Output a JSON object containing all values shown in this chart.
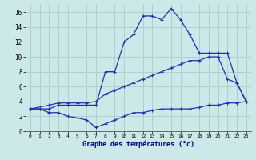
{
  "xlabel": "Graphe des températures (°c)",
  "bg_color": "#cce8e8",
  "grid_color": "#aacccc",
  "line_color": "#2233aa",
  "xlim": [
    -0.5,
    23.5
  ],
  "ylim": [
    0,
    17
  ],
  "xticks": [
    0,
    1,
    2,
    3,
    4,
    5,
    6,
    7,
    8,
    9,
    10,
    11,
    12,
    13,
    14,
    15,
    16,
    17,
    18,
    19,
    20,
    21,
    22,
    23
  ],
  "yticks": [
    0,
    2,
    4,
    6,
    8,
    10,
    12,
    14,
    16
  ],
  "line1_x": [
    0,
    1,
    2,
    3,
    4,
    5,
    6,
    7,
    8,
    9,
    10,
    11,
    12,
    13,
    14,
    15,
    16,
    17,
    18,
    19,
    20,
    21,
    22,
    23
  ],
  "line1_y": [
    3.0,
    3.0,
    3.0,
    3.5,
    3.5,
    3.5,
    3.5,
    3.5,
    8.0,
    8.0,
    12.0,
    13.0,
    15.5,
    15.5,
    15.0,
    16.5,
    15.0,
    13.0,
    10.5,
    10.5,
    10.5,
    10.5,
    6.5,
    4.0
  ],
  "line2_x": [
    0,
    2,
    3,
    4,
    5,
    6,
    7,
    8,
    9,
    10,
    11,
    12,
    13,
    14,
    15,
    16,
    17,
    18,
    19,
    20,
    21,
    22,
    23
  ],
  "line2_y": [
    3.0,
    3.5,
    3.8,
    3.8,
    3.8,
    3.8,
    4.0,
    5.0,
    5.5,
    6.0,
    6.5,
    7.0,
    7.5,
    8.0,
    8.5,
    9.0,
    9.5,
    9.5,
    10.0,
    10.0,
    7.0,
    6.5,
    4.0
  ],
  "line3_x": [
    0,
    1,
    2,
    3,
    4,
    5,
    6,
    7,
    8,
    9,
    10,
    11,
    12,
    13,
    14,
    15,
    16,
    17,
    18,
    19,
    20,
    21,
    22,
    23
  ],
  "line3_y": [
    3.0,
    3.0,
    2.5,
    2.5,
    2.0,
    1.8,
    1.5,
    0.5,
    1.0,
    1.5,
    2.0,
    2.5,
    2.5,
    2.8,
    3.0,
    3.0,
    3.0,
    3.0,
    3.2,
    3.5,
    3.5,
    3.8,
    3.8,
    4.0
  ]
}
